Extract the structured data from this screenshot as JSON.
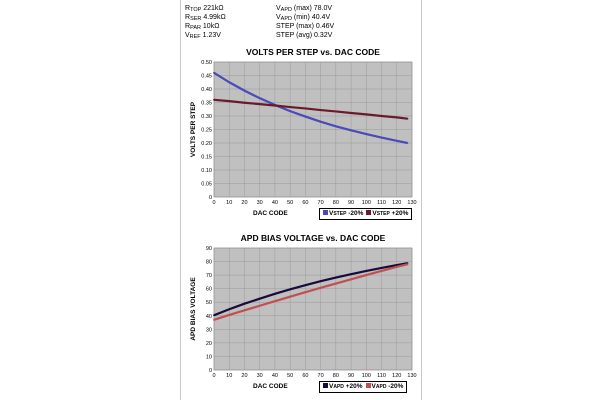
{
  "params": {
    "left": [
      {
        "sym": "R",
        "sub": "TOP",
        "val": "221kΩ"
      },
      {
        "sym": "R",
        "sub": "SER",
        "val": "4.99kΩ"
      },
      {
        "sym": "R",
        "sub": "PAR",
        "val": "10kΩ"
      },
      {
        "sym": "V",
        "sub": "REF",
        "val": "1.23V"
      }
    ],
    "right": [
      {
        "sym": "V",
        "sub": "APD",
        "val": "(max) 78.0V"
      },
      {
        "sym": "V",
        "sub": "APD",
        "val": "(min) 40.4V"
      },
      {
        "sym": "STEP",
        "sub": "",
        "val": "(max) 0.46V"
      },
      {
        "sym": "STEP",
        "sub": "",
        "val": "(avg) 0.32V"
      }
    ]
  },
  "colors": {
    "plot_bg": "#c0c0c0",
    "grid": "#9a9a9a",
    "series_blue": "#4a4ab8",
    "series_red": "#6a1a2a",
    "series_dark": "#1a0a3a",
    "series_pink": "#c05050"
  },
  "chart_data": [
    {
      "type": "line",
      "title": "VOLTS PER STEP vs. DAC CODE",
      "xlabel": "DAC CODE",
      "ylabel": "VOLTS PER STEP",
      "xlim": [
        0,
        130
      ],
      "ylim": [
        0,
        0.5
      ],
      "xticks": [
        "0",
        "10",
        "20",
        "30",
        "40",
        "50",
        "60",
        "70",
        "80",
        "90",
        "100",
        "110",
        "120",
        "130"
      ],
      "yticks": [
        "0",
        "0.05",
        "0.10",
        "0.15",
        "0.20",
        "0.25",
        "0.30",
        "0.35",
        "0.40",
        "0.45",
        "0.50"
      ],
      "grid": true,
      "legend_position": "bottom-right",
      "series": [
        {
          "name_main": "V",
          "name_sub": "STEP",
          "name_rest": " -20%",
          "color": "#4a4ab8",
          "x": [
            0,
            10,
            20,
            30,
            40,
            50,
            60,
            70,
            80,
            90,
            100,
            110,
            120,
            127
          ],
          "y": [
            0.46,
            0.425,
            0.394,
            0.366,
            0.341,
            0.318,
            0.298,
            0.279,
            0.262,
            0.247,
            0.233,
            0.22,
            0.208,
            0.2
          ]
        },
        {
          "name_main": "V",
          "name_sub": "STEP",
          "name_rest": " +20%",
          "color": "#6a1a2a",
          "x": [
            0,
            10,
            20,
            30,
            40,
            50,
            60,
            70,
            80,
            90,
            100,
            110,
            120,
            127
          ],
          "y": [
            0.36,
            0.355,
            0.349,
            0.344,
            0.339,
            0.333,
            0.328,
            0.322,
            0.317,
            0.311,
            0.306,
            0.3,
            0.295,
            0.29
          ]
        }
      ]
    },
    {
      "type": "line",
      "title": "APD BIAS VOLTAGE vs. DAC CODE",
      "xlabel": "DAC CODE",
      "ylabel": "APD BIAS VOLTAGE",
      "xlim": [
        0,
        130
      ],
      "ylim": [
        0,
        90
      ],
      "xticks": [
        "0",
        "10",
        "20",
        "30",
        "40",
        "50",
        "60",
        "70",
        "80",
        "90",
        "100",
        "110",
        "120",
        "130"
      ],
      "yticks": [
        "0",
        "10",
        "20",
        "30",
        "40",
        "50",
        "60",
        "70",
        "80",
        "90"
      ],
      "grid": true,
      "legend_position": "bottom-right",
      "series": [
        {
          "name_main": "V",
          "name_sub": "APD",
          "name_rest": " +20%",
          "color": "#1a0a3a",
          "x": [
            0,
            10,
            20,
            30,
            40,
            50,
            60,
            70,
            80,
            90,
            100,
            110,
            120,
            127
          ],
          "y": [
            40.4,
            44.8,
            48.9,
            52.6,
            56.2,
            59.5,
            62.6,
            65.5,
            68.2,
            70.7,
            73.1,
            75.3,
            77.4,
            78.8
          ]
        },
        {
          "name_main": "V",
          "name_sub": "APD",
          "name_rest": " -20%",
          "color": "#c05050",
          "x": [
            0,
            10,
            20,
            30,
            40,
            50,
            60,
            70,
            80,
            90,
            100,
            110,
            120,
            127
          ],
          "y": [
            37.0,
            40.6,
            44.0,
            47.4,
            50.8,
            54.1,
            57.4,
            60.6,
            63.8,
            66.9,
            70.0,
            73.1,
            76.1,
            78.0
          ]
        }
      ]
    }
  ]
}
